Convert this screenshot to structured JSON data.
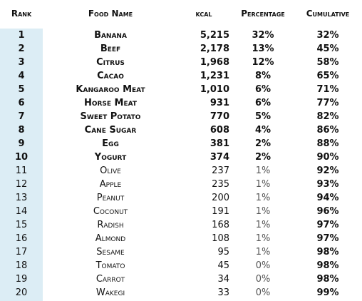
{
  "table": {
    "header": [
      "Rank",
      "Food Name",
      "kcal",
      "Percentage",
      "Cumulative"
    ],
    "rows": [
      [
        "1",
        "Banana",
        "5,215",
        "32%",
        "32%"
      ],
      [
        "2",
        "Beef",
        "2,178",
        "13%",
        "45%"
      ],
      [
        "3",
        "Citrus",
        "1,968",
        "12%",
        "58%"
      ],
      [
        "4",
        "Cacao",
        "1,231",
        "8%",
        "65%"
      ],
      [
        "5",
        "Kangaroo Meat",
        "1,010",
        "6%",
        "71%"
      ],
      [
        "6",
        "Horse Meat",
        "931",
        "6%",
        "77%"
      ],
      [
        "7",
        "Sweet Potato",
        "770",
        "5%",
        "82%"
      ],
      [
        "8",
        "Cane Sugar",
        "608",
        "4%",
        "86%"
      ],
      [
        "9",
        "Egg",
        "381",
        "2%",
        "88%"
      ],
      [
        "10",
        "Yogurt",
        "374",
        "2%",
        "90%"
      ],
      [
        "11",
        "Olive",
        "237",
        "1%",
        "92%"
      ],
      [
        "12",
        "Apple",
        "235",
        "1%",
        "93%"
      ],
      [
        "13",
        "Peanut",
        "200",
        "1%",
        "94%"
      ],
      [
        "14",
        "Coconut",
        "191",
        "1%",
        "96%"
      ],
      [
        "15",
        "Radish",
        "168",
        "1%",
        "97%"
      ],
      [
        "16",
        "Almond",
        "108",
        "1%",
        "97%"
      ],
      [
        "17",
        "Sesame",
        "95",
        "1%",
        "98%"
      ],
      [
        "18",
        "Tomato",
        "45",
        "0%",
        "98%"
      ],
      [
        "19",
        "Carrot",
        "34",
        "0%",
        "98%"
      ],
      [
        "20",
        "Wakegi",
        "33",
        "0%",
        "99%"
      ]
    ]
  }
}
